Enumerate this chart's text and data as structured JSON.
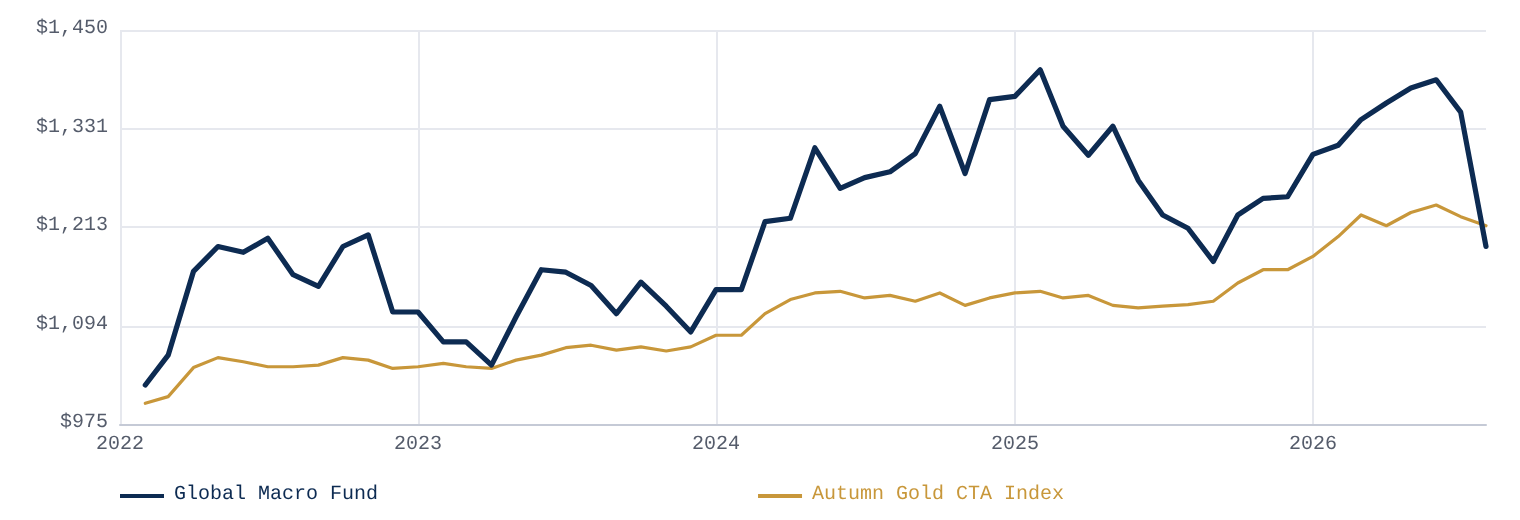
{
  "chart_data": {
    "type": "line",
    "x": [
      "2022-02",
      "2022-03",
      "2022-04",
      "2022-05",
      "2022-06",
      "2022-07",
      "2022-08",
      "2022-09",
      "2022-10",
      "2022-11",
      "2022-12",
      "2023-01",
      "2023-02",
      "2023-03",
      "2023-04",
      "2023-05",
      "2023-06",
      "2023-07",
      "2023-08",
      "2023-09",
      "2023-10",
      "2023-11",
      "2023-12",
      "2024-01",
      "2024-02",
      "2024-03",
      "2024-04",
      "2024-05",
      "2024-06",
      "2024-07",
      "2024-08",
      "2024-09",
      "2024-10",
      "2024-11",
      "2024-12",
      "2025-01",
      "2025-02",
      "2025-03",
      "2025-04",
      "2025-05",
      "2025-06",
      "2025-07",
      "2025-08",
      "2025-09",
      "2025-10",
      "2025-11",
      "2025-12",
      "2026-01",
      "2026-02",
      "2026-03",
      "2026-04",
      "2026-05",
      "2026-06",
      "2026-07",
      "2026-08"
    ],
    "series": [
      {
        "name": "Global Macro Fund",
        "color": "#0d2b52",
        "values": [
          1022,
          1058,
          1159,
          1189,
          1182,
          1199,
          1155,
          1141,
          1189,
          1203,
          1110,
          1110,
          1074,
          1074,
          1046,
          1104,
          1161,
          1158,
          1142,
          1108,
          1146,
          1117,
          1086,
          1137,
          1137,
          1219,
          1223,
          1308,
          1259,
          1272,
          1279,
          1301,
          1358,
          1277,
          1366,
          1370,
          1402,
          1334,
          1299,
          1334,
          1269,
          1227,
          1211,
          1171,
          1227,
          1247,
          1249,
          1300,
          1311,
          1342,
          1362,
          1380,
          1390,
          1351,
          1189
        ]
      },
      {
        "name": "Autumn Gold CTA Index",
        "color": "#c8973a",
        "values": [
          1000,
          1008,
          1043,
          1055,
          1050,
          1044,
          1044,
          1046,
          1055,
          1052,
          1042,
          1044,
          1048,
          1044,
          1042,
          1052,
          1058,
          1067,
          1070,
          1064,
          1068,
          1063,
          1068,
          1082,
          1082,
          1108,
          1125,
          1133,
          1135,
          1127,
          1130,
          1123,
          1133,
          1118,
          1127,
          1133,
          1135,
          1127,
          1130,
          1118,
          1115,
          1117,
          1119,
          1123,
          1145,
          1161,
          1161,
          1177,
          1201,
          1227,
          1214,
          1230,
          1239,
          1225,
          1214
        ]
      }
    ],
    "xlim": [
      "2022-01-01",
      "2026-08-01"
    ],
    "xticks": [
      "2022",
      "2023",
      "2024",
      "2025",
      "2026"
    ],
    "ylim": [
      975,
      1450
    ],
    "yticks": [
      {
        "value": 975,
        "label": "$975"
      },
      {
        "value": 1093.75,
        "label": "$1,094"
      },
      {
        "value": 1212.5,
        "label": "$1,213"
      },
      {
        "value": 1331.25,
        "label": "$1,331"
      },
      {
        "value": 1450,
        "label": "$1,450"
      }
    ],
    "grid": true,
    "legend": "bottom",
    "marker": "none",
    "line_style": "solid"
  }
}
